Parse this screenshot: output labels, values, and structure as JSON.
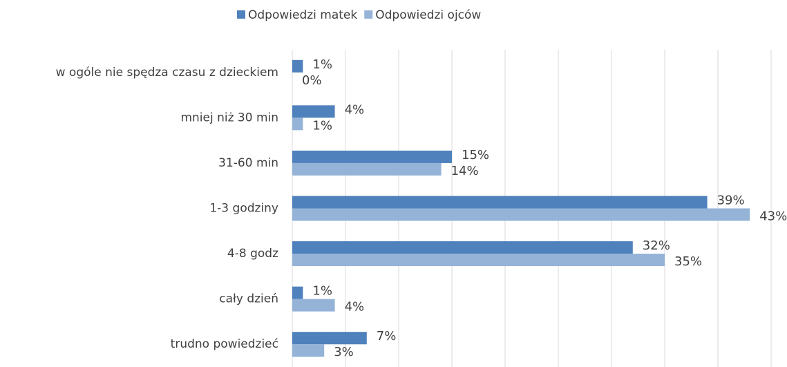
{
  "chart_data": {
    "type": "bar",
    "orientation": "horizontal",
    "categories": [
      "w ogóle nie spędza czasu z dzieckiem",
      "mniej niż 30 min",
      "31-60 min",
      "1-3 godziny",
      "4-8 godz",
      "cały dzień",
      "trudno powiedzieć"
    ],
    "series": [
      {
        "name": "Odpowiedzi matek",
        "color": "#4f81bd",
        "values": [
          1,
          4,
          15,
          39,
          32,
          1,
          7
        ],
        "value_labels": [
          "1%",
          "4%",
          "15%",
          "39%",
          "32%",
          "1%",
          "7%"
        ]
      },
      {
        "name": "Odpowiedzi ojców",
        "color": "#95b3d7",
        "values": [
          0,
          1,
          14,
          43,
          35,
          4,
          3
        ],
        "value_labels": [
          "0%",
          "1%",
          "14%",
          "43%",
          "35%",
          "4%",
          "3%"
        ]
      }
    ],
    "xlim": [
      0,
      45
    ],
    "xticks": [
      0,
      5,
      10,
      15,
      20,
      25,
      30,
      35,
      40,
      45
    ],
    "grid": true,
    "legend": "top"
  }
}
